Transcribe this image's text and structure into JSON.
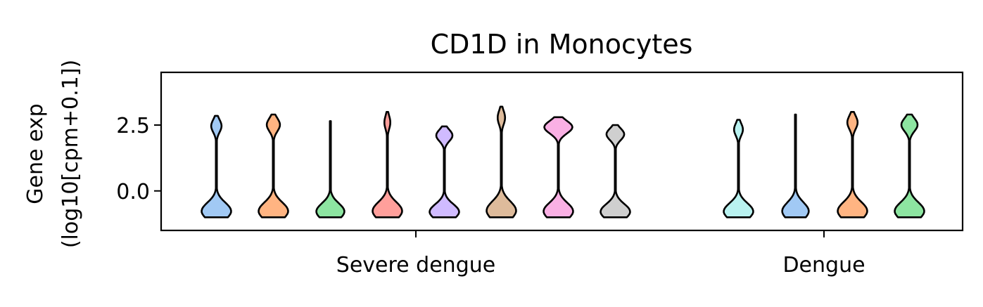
{
  "chart_data": {
    "type": "violin",
    "title": "CD1D in Monocytes",
    "ylabel_lines": [
      "Gene exp",
      "(log10[cpm+0.1])"
    ],
    "xlabel": "",
    "ylim": [
      -1.5,
      4.5
    ],
    "yticks": [
      {
        "value": 0.0,
        "label": "0.0"
      },
      {
        "value": 2.5,
        "label": "2.5"
      }
    ],
    "grid": false,
    "legend": "none",
    "groups": [
      {
        "label": "Severe dengue",
        "violins": [
          {
            "color": "#a1c9f4",
            "min": -1.0,
            "max": 2.85,
            "bottom_width": 1.0,
            "upper_width": 0.35
          },
          {
            "color": "#ffb482",
            "min": -1.0,
            "max": 2.9,
            "bottom_width": 1.0,
            "upper_width": 0.45
          },
          {
            "color": "#8de5a1",
            "min": -1.0,
            "max": 2.65,
            "bottom_width": 0.95,
            "upper_width": 0.0
          },
          {
            "color": "#ff9f9b",
            "min": -1.0,
            "max": 3.0,
            "bottom_width": 1.0,
            "upper_width": 0.2
          },
          {
            "color": "#d0bbff",
            "min": -1.0,
            "max": 2.45,
            "bottom_width": 1.0,
            "upper_width": 0.55
          },
          {
            "color": "#debb9b",
            "min": -1.0,
            "max": 3.2,
            "bottom_width": 1.0,
            "upper_width": 0.25
          },
          {
            "color": "#fab0e4",
            "min": -1.0,
            "max": 2.8,
            "bottom_width": 1.0,
            "upper_width": 0.95
          },
          {
            "color": "#cfcfcf",
            "min": -1.0,
            "max": 2.5,
            "bottom_width": 1.0,
            "upper_width": 0.6
          }
        ]
      },
      {
        "label": "Dengue",
        "violins": [
          {
            "color": "#b9f2f0",
            "min": -1.0,
            "max": 2.7,
            "bottom_width": 1.0,
            "upper_width": 0.3
          },
          {
            "color": "#a1c9f4",
            "min": -1.0,
            "max": 2.9,
            "bottom_width": 0.9,
            "upper_width": 0.0
          },
          {
            "color": "#ffb482",
            "min": -1.0,
            "max": 3.0,
            "bottom_width": 1.0,
            "upper_width": 0.35
          },
          {
            "color": "#8de5a1",
            "min": -1.0,
            "max": 2.9,
            "bottom_width": 1.0,
            "upper_width": 0.55
          }
        ]
      }
    ]
  }
}
